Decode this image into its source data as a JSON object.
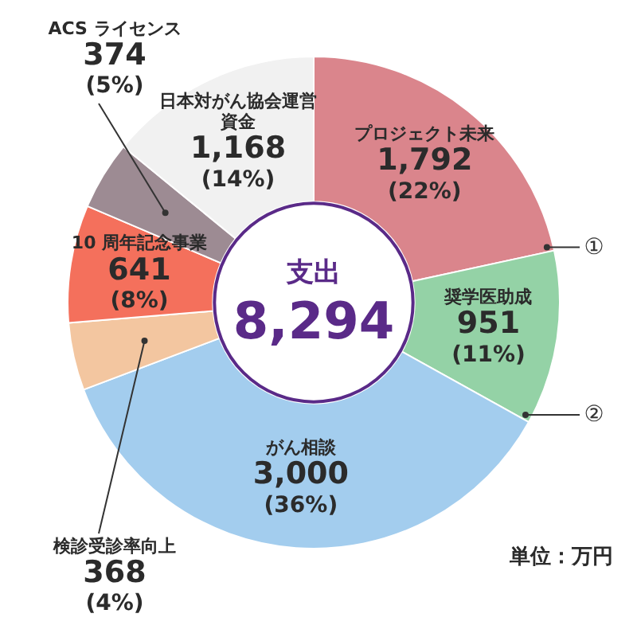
{
  "chart_data": {
    "type": "donut",
    "title": "支出",
    "subtitle": "8,294",
    "categories": [
      "プロジェクト未来",
      "奨学医助成",
      "がん相談",
      "検診受診率向上",
      "10 周年記念事業",
      "ACS ライセンス",
      "日本対がん協会運営資金"
    ],
    "values": [
      1792,
      951,
      3000,
      368,
      641,
      374,
      1168
    ],
    "colors": [
      "#da858c",
      "#94d2a6",
      "#a3cdee",
      "#f3c6a0",
      "#f4705c",
      "#9d8b93",
      "#f1f1f1"
    ],
    "value_labels": [
      "1,792\n(22%)",
      "951\n(11%)",
      "3,000\n(36%)",
      "368\n(4%)",
      "641\n(8%)",
      "374\n(5%)",
      "1,168\n(14%)"
    ],
    "annotations": [
      {
        "text": "①",
        "x": "プロジェクト未来"
      },
      {
        "text": "②",
        "x": "奨学医助成"
      },
      "単位：万円"
    ],
    "legend": false
  }
}
